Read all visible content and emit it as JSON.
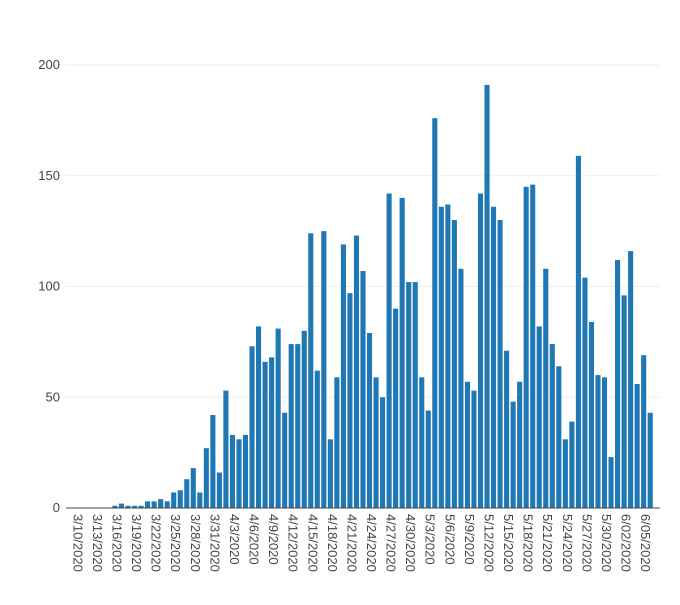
{
  "colors": {
    "bar": "#1f77b4",
    "grid": "#eeeeee",
    "axis": "#444444",
    "text": "#444444"
  },
  "chart_data": {
    "type": "bar",
    "title": "",
    "xlabel": "",
    "ylabel": "",
    "ylim": [
      0,
      200
    ],
    "yticks": [
      0,
      50,
      100,
      150,
      200
    ],
    "grid": true,
    "legend": "none",
    "categories": [
      "3/10/2020",
      "3/11/2020",
      "3/12/2020",
      "3/13/2020",
      "3/14/2020",
      "3/15/2020",
      "3/16/2020",
      "3/17/2020",
      "3/18/2020",
      "3/19/2020",
      "3/20/2020",
      "3/21/2020",
      "3/22/2020",
      "3/23/2020",
      "3/24/2020",
      "3/25/2020",
      "3/26/2020",
      "3/27/2020",
      "3/28/2020",
      "3/29/2020",
      "3/30/2020",
      "3/31/2020",
      "4/1/2020",
      "4/2/2020",
      "4/3/2020",
      "4/4/2020",
      "4/5/2020",
      "4/6/2020",
      "4/7/2020",
      "4/8/2020",
      "4/9/2020",
      "4/10/2020",
      "4/11/2020",
      "4/12/2020",
      "4/13/2020",
      "4/14/2020",
      "4/15/2020",
      "4/16/2020",
      "4/17/2020",
      "4/18/2020",
      "4/19/2020",
      "4/20/2020",
      "4/21/2020",
      "4/22/2020",
      "4/23/2020",
      "4/24/2020",
      "4/25/2020",
      "4/26/2020",
      "4/27/2020",
      "4/28/2020",
      "4/29/2020",
      "4/30/2020",
      "5/1/2020",
      "5/2/2020",
      "5/3/2020",
      "5/4/2020",
      "5/5/2020",
      "5/6/2020",
      "5/7/2020",
      "5/8/2020",
      "5/9/2020",
      "5/10/2020",
      "5/11/2020",
      "5/12/2020",
      "5/13/2020",
      "5/14/2020",
      "5/15/2020",
      "5/16/2020",
      "5/17/2020",
      "5/18/2020",
      "5/19/2020",
      "5/20/2020",
      "5/21/2020",
      "5/22/2020",
      "5/23/2020",
      "5/24/2020",
      "5/25/2020",
      "5/26/2020",
      "5/27/2020",
      "5/28/2020",
      "5/29/2020",
      "5/30/2020",
      "5/31/2020",
      "6/01/2020",
      "6/02/2020",
      "6/03/2020",
      "6/04/2020",
      "6/05/2020",
      "6/06/2020",
      "6/07/2020",
      "6/08/2020"
    ],
    "values": [
      0,
      0,
      0,
      0,
      0,
      0,
      0,
      1,
      2,
      1,
      1,
      1,
      3,
      3,
      4,
      3,
      7,
      8,
      13,
      18,
      7,
      27,
      42,
      16,
      53,
      33,
      31,
      33,
      73,
      82,
      66,
      68,
      81,
      43,
      74,
      74,
      80,
      124,
      62,
      125,
      31,
      59,
      119,
      97,
      123,
      107,
      79,
      59,
      50,
      142,
      90,
      140,
      102,
      102,
      59,
      44,
      176,
      136,
      137,
      130,
      108,
      57,
      53,
      142,
      191,
      136,
      130,
      71,
      48,
      57,
      145,
      146,
      82,
      108,
      74,
      64,
      31,
      39,
      159,
      104,
      84,
      60,
      59,
      23,
      112,
      96,
      116,
      56,
      69,
      43,
      0
    ],
    "xtick_labels": [
      "3/10/2020",
      "3/13/2020",
      "3/16/2020",
      "3/19/2020",
      "3/22/2020",
      "3/25/2020",
      "3/28/2020",
      "3/31/2020",
      "4/3/2020",
      "4/6/2020",
      "4/9/2020",
      "4/12/2020",
      "4/15/2020",
      "4/18/2020",
      "4/21/2020",
      "4/24/2020",
      "4/27/2020",
      "4/30/2020",
      "5/3/2020",
      "5/6/2020",
      "5/9/2020",
      "5/12/2020",
      "5/15/2020",
      "5/18/2020",
      "5/21/2020",
      "5/24/2020",
      "5/27/2020",
      "5/30/2020",
      "6/02/2020",
      "6/05/2020"
    ]
  }
}
